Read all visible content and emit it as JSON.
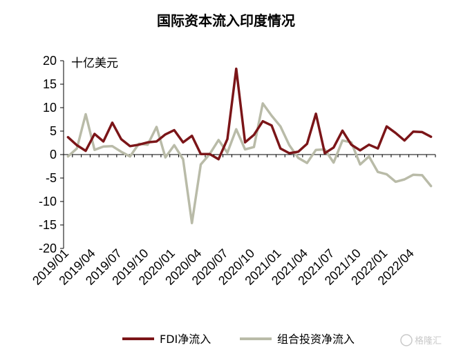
{
  "chart_data": {
    "type": "line",
    "title": "国际资本流入印度情况",
    "unit_label": "十亿美元",
    "xlabel": "",
    "ylabel": "",
    "ylim": [
      -20,
      20
    ],
    "y_ticks": [
      20,
      15,
      10,
      5,
      0,
      -5,
      -10,
      -15,
      -20
    ],
    "x": [
      "2019/01",
      "2019/02",
      "2019/03",
      "2019/04",
      "2019/05",
      "2019/06",
      "2019/07",
      "2019/08",
      "2019/09",
      "2019/10",
      "2019/11",
      "2019/12",
      "2020/01",
      "2020/02",
      "2020/03",
      "2020/04",
      "2020/05",
      "2020/06",
      "2020/07",
      "2020/08",
      "2020/09",
      "2020/10",
      "2020/11",
      "2020/12",
      "2021/01",
      "2021/02",
      "2021/03",
      "2021/04",
      "2021/05",
      "2021/06",
      "2021/07",
      "2021/08",
      "2021/09",
      "2021/10",
      "2021/11",
      "2021/12",
      "2022/01",
      "2022/02",
      "2022/03",
      "2022/04",
      "2022/05",
      "2022/06"
    ],
    "x_tick_labels": [
      "2019/01",
      "2019/04",
      "2019/07",
      "2019/10",
      "2020/01",
      "2020/04",
      "2020/07",
      "2020/10",
      "2021/01",
      "2021/04",
      "2021/07",
      "2021/10",
      "2022/01",
      "2022/04"
    ],
    "series": [
      {
        "name": "FDI净流入",
        "color": "#7b1518",
        "values": [
          3.7,
          2.0,
          0.8,
          4.4,
          2.8,
          6.8,
          3.3,
          1.8,
          2.1,
          2.6,
          2.8,
          4.3,
          5.2,
          2.6,
          4.0,
          0.1,
          0.1,
          -1.0,
          3.3,
          18.3,
          2.6,
          4.2,
          7.1,
          6.2,
          1.3,
          0.3,
          0.6,
          2.3,
          8.7,
          0.3,
          1.5,
          5.1,
          2.1,
          0.9,
          2.1,
          1.3,
          6.0,
          4.6,
          3.0,
          4.9,
          4.8,
          3.8
        ]
      },
      {
        "name": "组合投资净流入",
        "color": "#b9bba8",
        "values": [
          -0.4,
          1.3,
          8.6,
          1.0,
          1.7,
          1.8,
          0.6,
          -0.4,
          2.3,
          2.1,
          5.9,
          -0.6,
          2.0,
          -1.0,
          -14.6,
          -2.1,
          0.1,
          3.1,
          0.4,
          5.4,
          1.1,
          1.6,
          10.9,
          8.3,
          6.0,
          2.0,
          -0.7,
          -1.8,
          1.0,
          1.1,
          -1.7,
          3.0,
          2.6,
          -2.1,
          -0.4,
          -3.7,
          -4.2,
          -5.8,
          -5.3,
          -4.3,
          -4.4,
          -6.7
        ]
      }
    ],
    "legend_placement": "bottom",
    "grid": false
  },
  "watermark": "格隆汇"
}
